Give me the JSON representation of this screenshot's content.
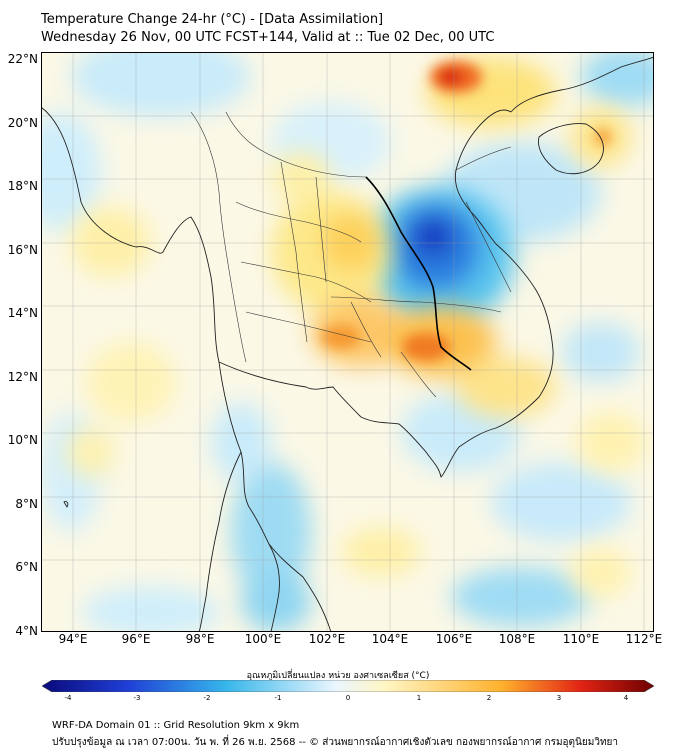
{
  "title": "Temperature Change 24-hr (°C) - [Data Assimilation]",
  "subtitle": "Wednesday 26 Nov, 00 UTC FCST+144, Valid at :: Tue 02 Dec, 00 UTC",
  "lat_labels": [
    "22°N",
    "20°N",
    "18°N",
    "16°N",
    "14°N",
    "12°N",
    "10°N",
    "8°N",
    "6°N",
    "4°N"
  ],
  "lon_labels": [
    "94°E",
    "96°E",
    "98°E",
    "100°E",
    "102°E",
    "104°E",
    "106°E",
    "108°E",
    "110°E",
    "112°E"
  ],
  "colorbar": {
    "title": "อุณหภูมิเปลี่ยนแปลง หน่วย องศาเซลเซียส (°C)",
    "ticks": [
      "-4",
      "-3",
      "-2",
      "-1",
      "0",
      "1",
      "2",
      "3",
      "4"
    ],
    "colors": [
      "#0a0a7a",
      "#1f3fd6",
      "#36b6ea",
      "#eaf6ff",
      "#fff6c4",
      "#ffb22e",
      "#e22414",
      "#6e0000"
    ]
  },
  "footer": {
    "line1": "WRF-DA Domain 01 :: Grid Resolution 9km x 9km",
    "line2": "ปรับปรุงข้อมูล ณ เวลา 07:00น. วัน พ. ที่ 26 พ.ย. 2568 -- © ส่วนพยากรณ์อากาศเชิงตัวเลข กองพยากรณ์อากาศ กรมอุตุนิยมวิทยา"
  }
}
